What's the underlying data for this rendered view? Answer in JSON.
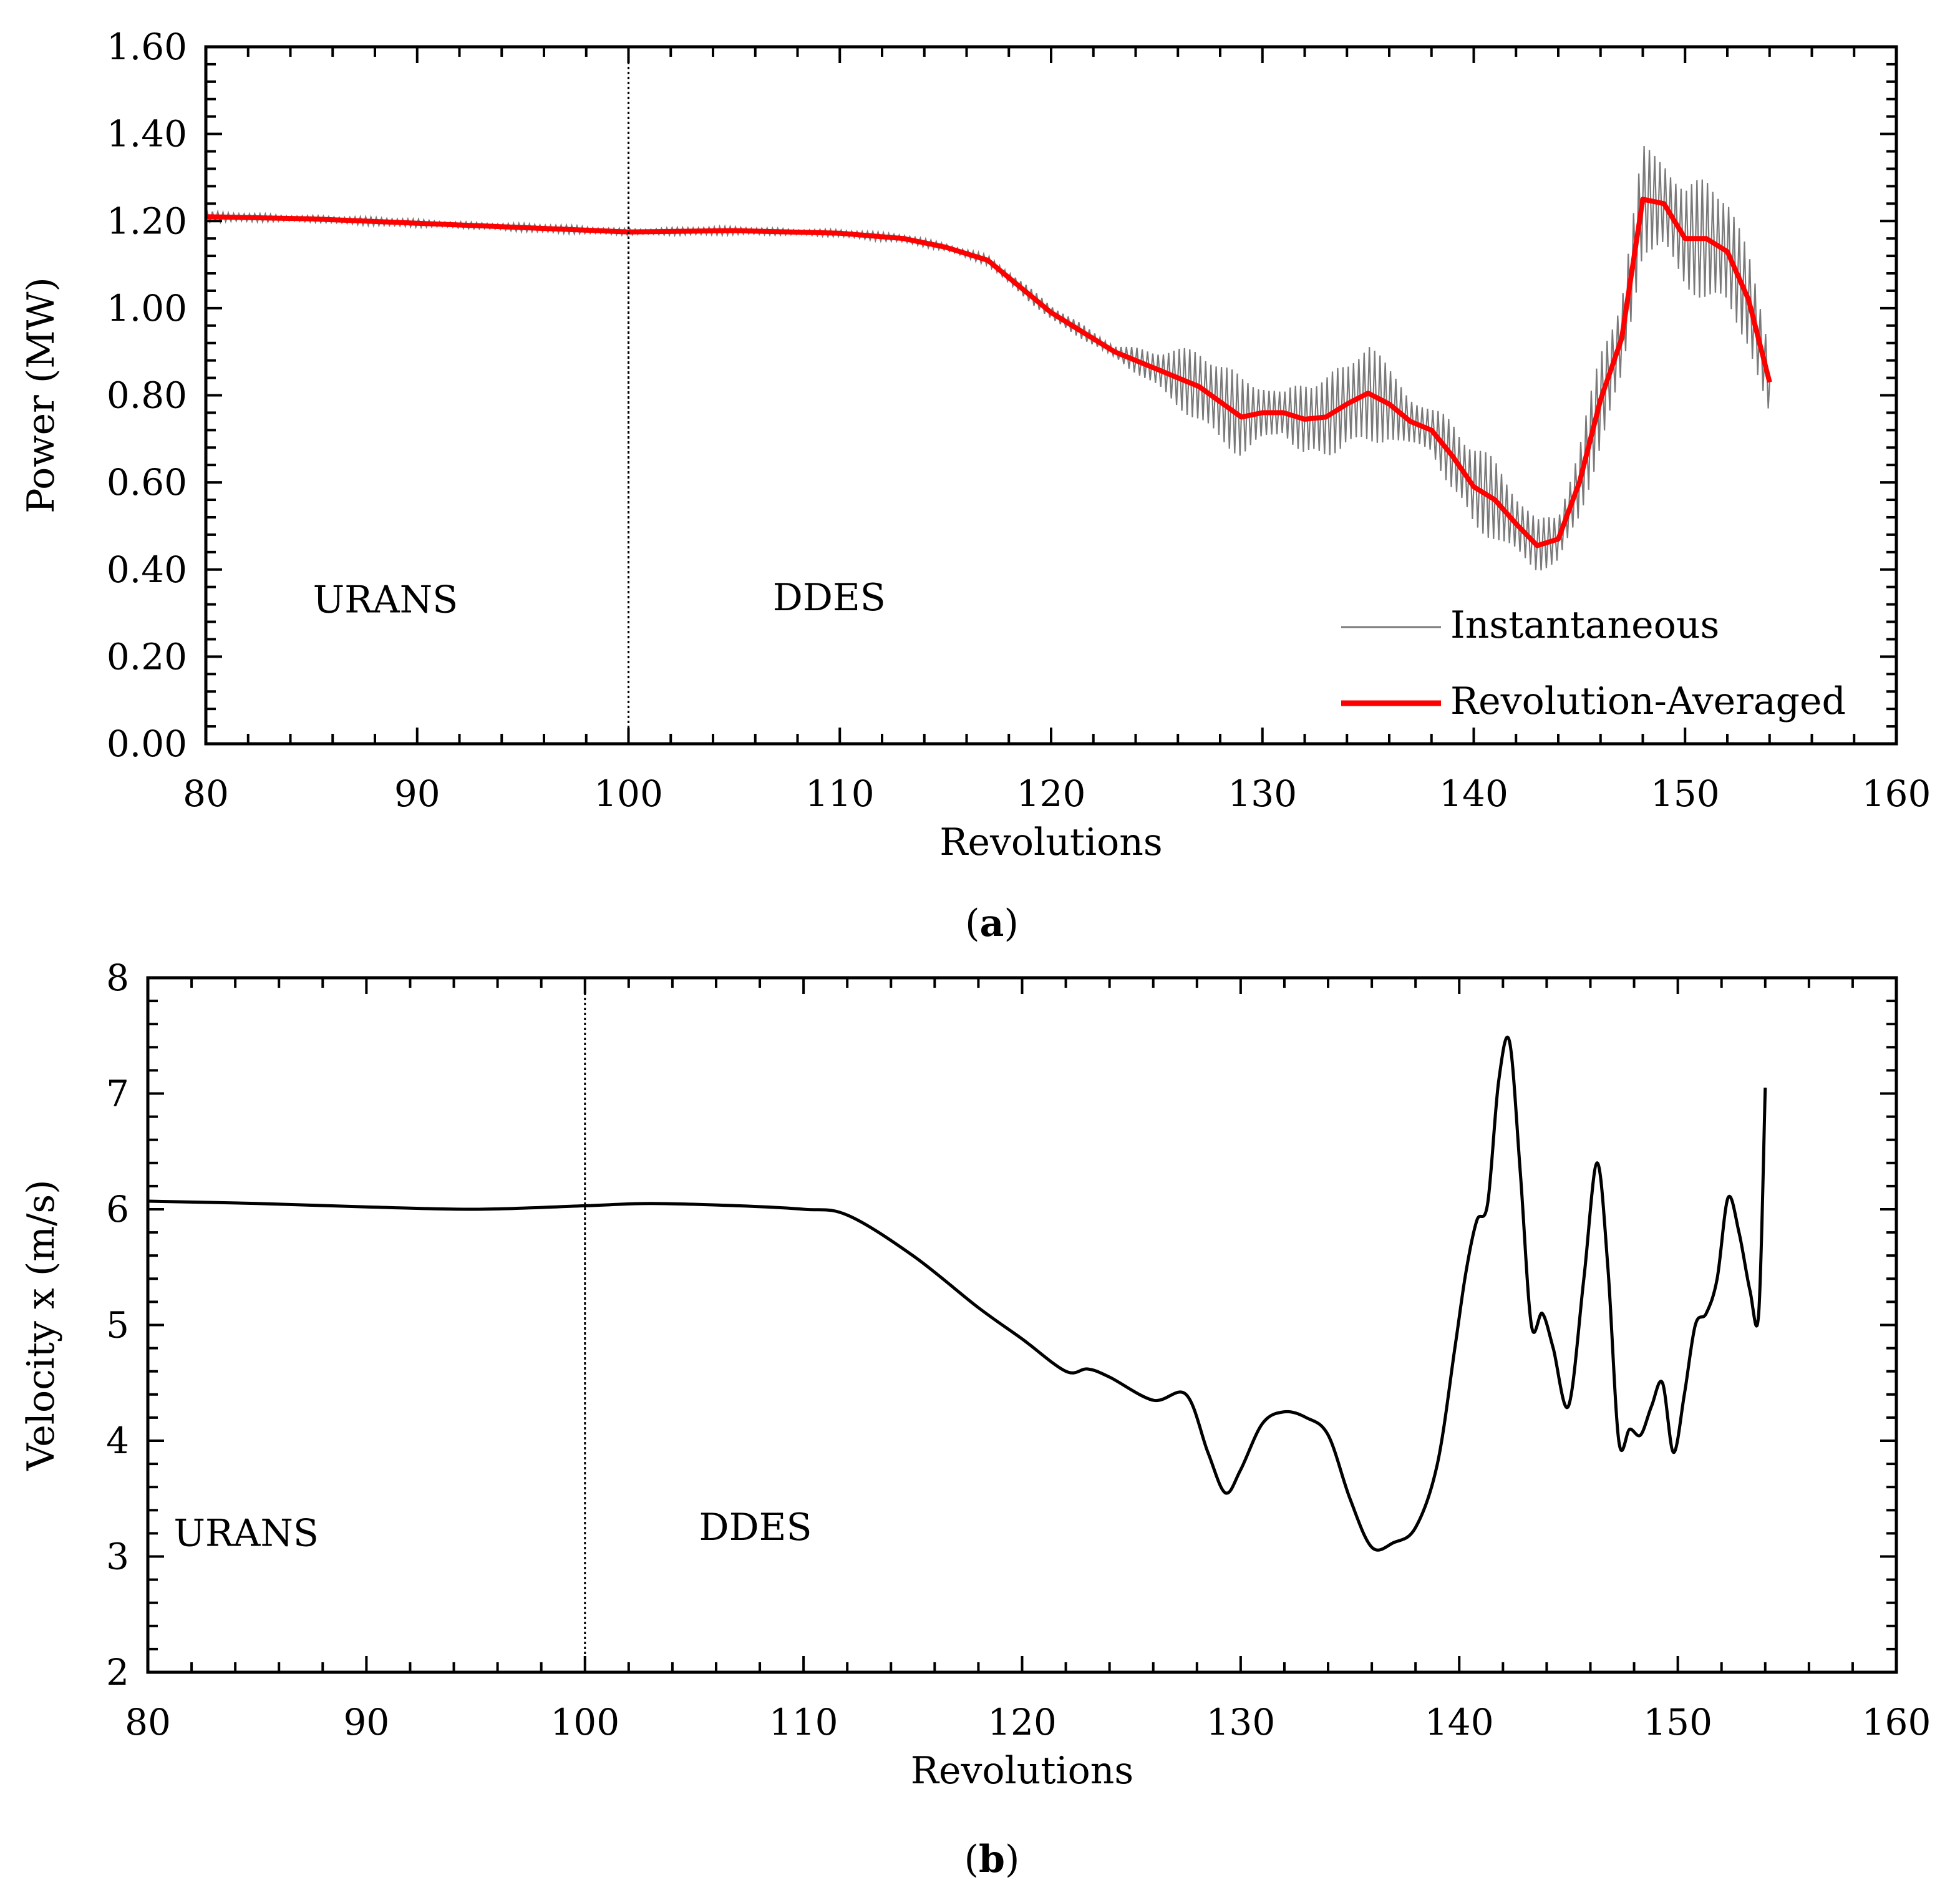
{
  "colors": {
    "axis": "#000000",
    "instantaneous": "#7a7a7a",
    "averaged": "#ff0000",
    "velocity": "#000000",
    "divider": "#000000",
    "background": "#ffffff"
  },
  "chart_data": [
    {
      "id": "a",
      "type": "line",
      "caption": {
        "open": "(",
        "letter": "a",
        "close": ")"
      },
      "xlabel": "Revolutions",
      "ylabel": "Power (MW)",
      "xlim": [
        80,
        160
      ],
      "ylim": [
        0,
        1.6
      ],
      "xticks": [
        80,
        90,
        100,
        110,
        120,
        130,
        140,
        150,
        160
      ],
      "xtick_labels": [
        "80",
        "90",
        "100",
        "110",
        "120",
        "130",
        "140",
        "150",
        "160"
      ],
      "yticks": [
        0,
        0.2,
        0.4,
        0.6,
        0.8,
        1.0,
        1.2,
        1.4,
        1.6
      ],
      "ytick_labels": [
        "0.00",
        "0.20",
        "0.40",
        "0.60",
        "0.80",
        "1.00",
        "1.20",
        "1.40",
        "1.60"
      ],
      "divider_x": 100,
      "regions": [
        {
          "label": "URANS",
          "x": 88.5,
          "y": 0.33
        },
        {
          "label": "DDES",
          "x": 109.5,
          "y": 0.335
        }
      ],
      "legend": {
        "position": "bottom-right",
        "entries": [
          {
            "name": "Instantaneous",
            "style": "thin-gray"
          },
          {
            "name": "Revolution-Averaged",
            "style": "thick-red"
          }
        ]
      },
      "series": [
        {
          "name": "Revolution-Averaged",
          "x": [
            80,
            85,
            90,
            95,
            100,
            105,
            110,
            113,
            115,
            117,
            120,
            123,
            125,
            127,
            129,
            130,
            131,
            132,
            133,
            134,
            135,
            136,
            137,
            138,
            139,
            140,
            141,
            142,
            143,
            144,
            145,
            146,
            147,
            148,
            149,
            150,
            151,
            152,
            153,
            154
          ],
          "y": [
            1.21,
            1.205,
            1.195,
            1.185,
            1.175,
            1.178,
            1.172,
            1.16,
            1.14,
            1.11,
            0.99,
            0.9,
            0.86,
            0.82,
            0.75,
            0.76,
            0.76,
            0.745,
            0.75,
            0.78,
            0.805,
            0.78,
            0.74,
            0.72,
            0.66,
            0.59,
            0.56,
            0.505,
            0.455,
            0.47,
            0.6,
            0.79,
            0.93,
            1.25,
            1.24,
            1.16,
            1.16,
            1.13,
            1.02,
            0.83
          ]
        },
        {
          "name": "Instantaneous",
          "oscillation_period_rev": 0.25,
          "x": [
            80,
            85,
            90,
            95,
            100,
            105,
            110,
            113,
            115,
            117,
            120,
            123,
            125,
            127,
            129,
            130,
            131,
            132,
            133,
            134,
            135,
            136,
            137,
            138,
            139,
            140,
            141,
            142,
            143,
            144,
            145,
            146,
            147,
            148,
            149,
            150,
            151,
            152,
            153,
            154
          ],
          "mean": [
            1.21,
            1.205,
            1.195,
            1.185,
            1.175,
            1.178,
            1.172,
            1.16,
            1.14,
            1.11,
            0.99,
            0.9,
            0.86,
            0.82,
            0.75,
            0.76,
            0.76,
            0.745,
            0.75,
            0.78,
            0.805,
            0.78,
            0.74,
            0.72,
            0.66,
            0.59,
            0.56,
            0.505,
            0.455,
            0.47,
            0.6,
            0.79,
            0.93,
            1.25,
            1.24,
            1.16,
            1.16,
            1.13,
            1.02,
            0.83
          ],
          "amplitude": [
            0.012,
            0.01,
            0.01,
            0.01,
            0.01,
            0.01,
            0.01,
            0.01,
            0.012,
            0.015,
            0.018,
            0.02,
            0.06,
            0.09,
            0.1,
            0.09,
            0.06,
            0.14,
            0.12,
            0.1,
            0.14,
            0.08,
            0.07,
            0.06,
            0.12,
            0.14,
            0.11,
            0.08,
            0.06,
            0.06,
            0.1,
            0.14,
            0.16,
            0.16,
            0.14,
            0.12,
            0.15,
            0.14,
            0.12,
            0.13
          ]
        }
      ]
    },
    {
      "id": "b",
      "type": "line",
      "caption": {
        "open": "(",
        "letter": "b",
        "close": ")"
      },
      "xlabel": "Revolutions",
      "ylabel": "Velocity x (m/s)",
      "xlim": [
        80,
        160
      ],
      "ylim": [
        2,
        8
      ],
      "xticks": [
        80,
        90,
        100,
        110,
        120,
        130,
        140,
        150,
        160
      ],
      "xtick_labels": [
        "80",
        "90",
        "100",
        "110",
        "120",
        "130",
        "140",
        "150",
        "160"
      ],
      "yticks": [
        2,
        3,
        4,
        5,
        6,
        7,
        8
      ],
      "ytick_labels": [
        "2",
        "3",
        "4",
        "5",
        "6",
        "7",
        "8"
      ],
      "divider_x": 100,
      "regions": [
        {
          "label": "URANS",
          "x": 84.5,
          "y": 3.2
        },
        {
          "label": "DDES",
          "x": 107.8,
          "y": 3.25
        }
      ],
      "series": [
        {
          "name": "Velocity x",
          "x": [
            80,
            85,
            90,
            95,
            100,
            103,
            107,
            110,
            112,
            115,
            118,
            120,
            122,
            123,
            124,
            126,
            127.5,
            128.5,
            129.3,
            130,
            131,
            132,
            133,
            134,
            135,
            136,
            137,
            138,
            139,
            139.8,
            140.3,
            140.8,
            141.3,
            141.8,
            142.3,
            142.8,
            143.3,
            143.8,
            144.3,
            145,
            145.7,
            146.3,
            146.8,
            147.3,
            147.8,
            148.3,
            148.8,
            149.3,
            149.8,
            150.3,
            150.8,
            151.3,
            151.8,
            152.3,
            152.8,
            153.3,
            153.7,
            154
          ],
          "y": [
            6.07,
            6.05,
            6.02,
            6.0,
            6.03,
            6.05,
            6.03,
            6.0,
            5.95,
            5.6,
            5.15,
            4.88,
            4.6,
            4.62,
            4.55,
            4.35,
            4.4,
            3.9,
            3.55,
            3.75,
            4.15,
            4.25,
            4.2,
            4.05,
            3.5,
            3.08,
            3.12,
            3.25,
            3.8,
            4.8,
            5.45,
            5.9,
            6.05,
            7.1,
            7.45,
            6.3,
            5.0,
            5.1,
            4.8,
            4.3,
            5.4,
            6.4,
            5.5,
            4.0,
            4.1,
            4.05,
            4.3,
            4.5,
            3.9,
            4.4,
            5.0,
            5.1,
            5.4,
            6.1,
            5.8,
            5.3,
            5.1,
            7.05
          ]
        }
      ]
    }
  ]
}
